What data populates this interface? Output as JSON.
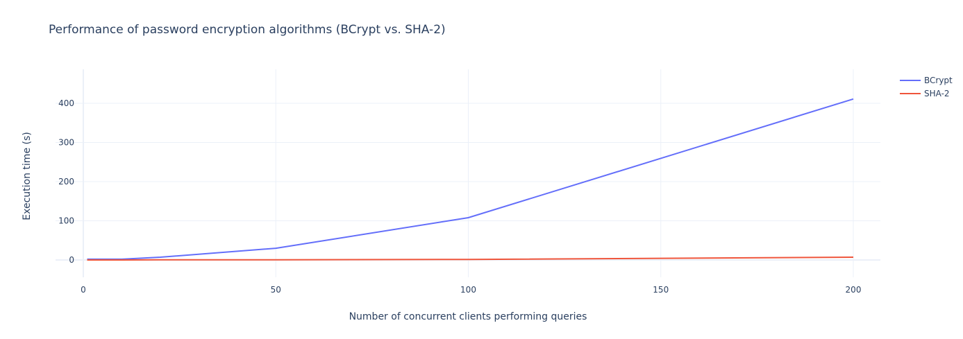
{
  "title": "Performance of password encryption algorithms (BCrypt vs. SHA-2)",
  "xaxis": {
    "label": "Number of concurrent clients performing queries",
    "ticks": [
      "0",
      "50",
      "100",
      "150",
      "200"
    ],
    "tick_values": [
      0,
      50,
      100,
      150,
      200
    ],
    "range": [
      0,
      207
    ]
  },
  "yaxis": {
    "label": "Execution time (s)",
    "ticks": [
      "0",
      "100",
      "200",
      "300",
      "400"
    ],
    "tick_values": [
      0,
      100,
      200,
      300,
      400
    ],
    "range": [
      -48,
      487
    ]
  },
  "legend": [
    {
      "name": "BCrypt",
      "color": "#636efa"
    },
    {
      "name": "SHA-2",
      "color": "#ef553b"
    }
  ],
  "chart_data": {
    "type": "line",
    "title": "Performance of password encryption algorithms (BCrypt vs. SHA-2)",
    "xlabel": "Number of concurrent clients performing queries",
    "ylabel": "Execution time (s)",
    "x": [
      1,
      10,
      20,
      50,
      100,
      200
    ],
    "series": [
      {
        "name": "BCrypt",
        "color": "#636efa",
        "values": [
          2,
          2,
          7,
          30,
          108,
          411
        ]
      },
      {
        "name": "SHA-2",
        "color": "#ef553b",
        "values": [
          0,
          0,
          0.3,
          0.5,
          1.5,
          7
        ]
      }
    ],
    "xlim": [
      0,
      207
    ],
    "ylim": [
      -48,
      487
    ],
    "grid": true,
    "legend_position": "top-right outside"
  }
}
